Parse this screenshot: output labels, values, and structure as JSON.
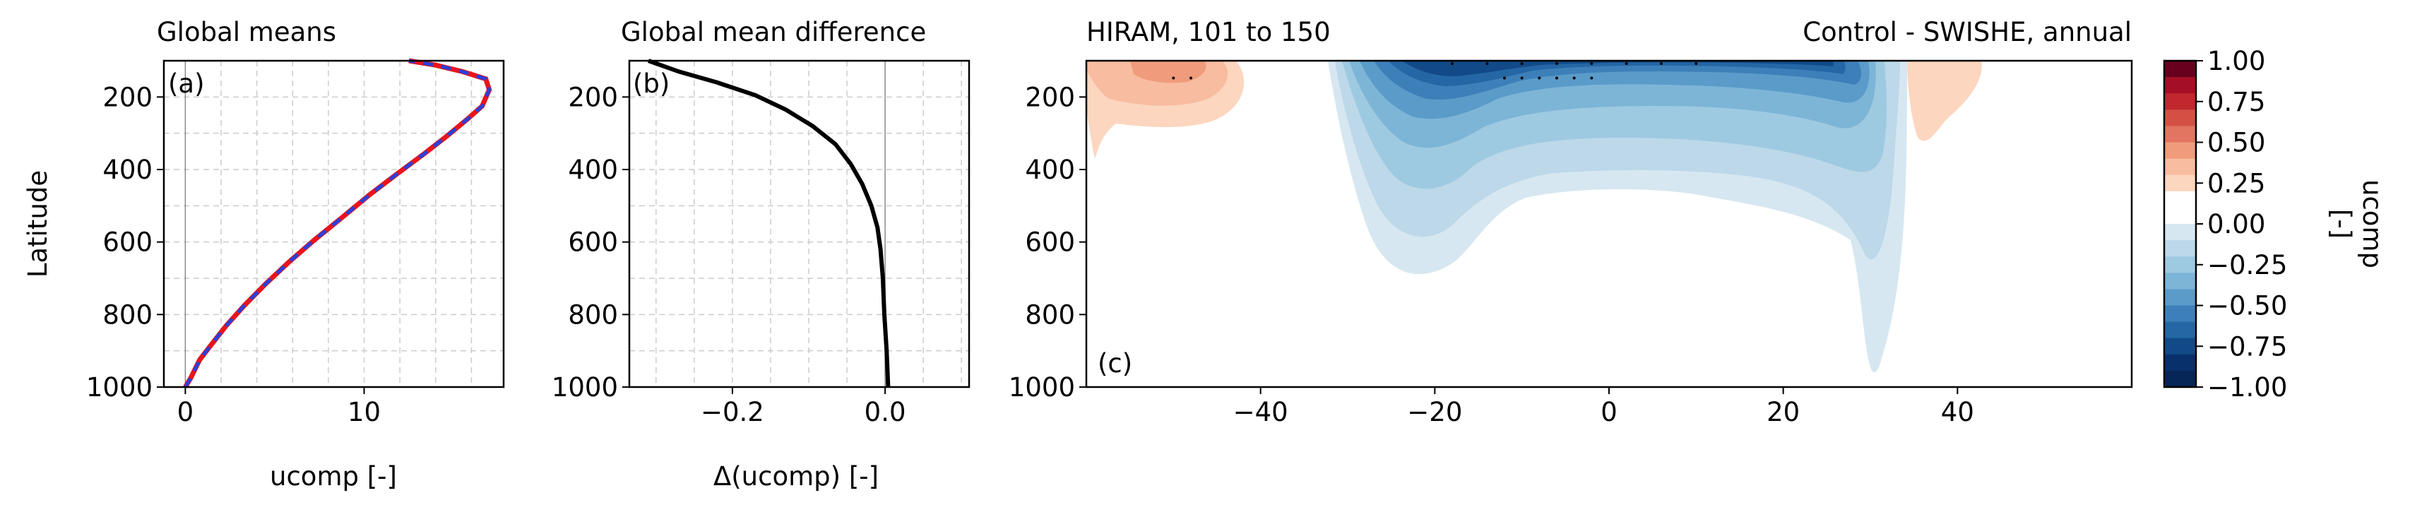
{
  "panel_a": {
    "title": "Global means",
    "label": "(a)",
    "ylabel": "Latitude",
    "xlabel": "ucomp [-]"
  },
  "panel_b": {
    "title": "Global mean difference",
    "label": "(b)",
    "xlabel": "Δ(ucomp) [-]"
  },
  "panel_c": {
    "title_left": "HIRAM, 101 to 150",
    "title_right": "Control - SWISHE, annual",
    "label": "(c)"
  },
  "colorbar": {
    "label": "ucomp\n[-]"
  },
  "colors": {
    "control_line": "#e8141c",
    "experiment_line": "#2c3fd6",
    "difference_line": "#000000"
  },
  "chart_data": [
    {
      "id": "a",
      "type": "line",
      "title": "Global means",
      "xlabel": "ucomp [-]",
      "ylabel": "Latitude",
      "xlim": [
        -1.2,
        17.8
      ],
      "ylim": [
        1000,
        100
      ],
      "xticks": [
        0,
        10
      ],
      "xtick_labels": [
        "0",
        "10"
      ],
      "yticks": [
        200,
        400,
        600,
        800,
        1000
      ],
      "ytick_labels": [
        "200",
        "400",
        "600",
        "800",
        "1000"
      ],
      "grid": true,
      "series": [
        {
          "style": "solid red",
          "color": "#e8141c",
          "x": [
            0.0,
            0.3,
            0.8,
            1.5,
            2.3,
            3.3,
            4.5,
            5.8,
            7.2,
            8.7,
            10.3,
            11.9,
            13.4,
            14.7,
            15.8,
            16.6,
            17.0,
            16.8,
            15.5,
            14.0,
            12.5
          ],
          "y": [
            1000,
            975,
            925,
            880,
            830,
            775,
            715,
            655,
            595,
            535,
            470,
            410,
            355,
            305,
            260,
            225,
            180,
            150,
            130,
            112,
            100
          ]
        },
        {
          "style": "dashed blue",
          "color": "#2c3fd6",
          "x": [
            0.0,
            0.3,
            0.8,
            1.5,
            2.3,
            3.3,
            4.5,
            5.8,
            7.2,
            8.7,
            10.3,
            11.9,
            13.4,
            14.7,
            15.8,
            16.6,
            17.0,
            16.8,
            15.5,
            14.0,
            12.5
          ],
          "y": [
            1000,
            975,
            925,
            880,
            830,
            775,
            715,
            655,
            595,
            535,
            470,
            410,
            355,
            305,
            260,
            225,
            180,
            150,
            130,
            112,
            100
          ]
        }
      ]
    },
    {
      "id": "b",
      "type": "line",
      "title": "Global mean difference",
      "xlabel": "Δ(ucomp) [-]",
      "xlim": [
        -0.335,
        0.11
      ],
      "ylim": [
        1000,
        100
      ],
      "xticks": [
        -0.2,
        0.0
      ],
      "xtick_labels": [
        "−0.2",
        "0.0"
      ],
      "yticks": [
        200,
        400,
        600,
        800,
        1000
      ],
      "ytick_labels": [
        "200",
        "400",
        "600",
        "800",
        "1000"
      ],
      "grid": true,
      "series": [
        {
          "color": "#000000",
          "x": [
            -0.31,
            -0.27,
            -0.22,
            -0.17,
            -0.13,
            -0.095,
            -0.065,
            -0.045,
            -0.03,
            -0.018,
            -0.01,
            -0.006,
            -0.003,
            -0.001,
            0.002,
            0.004
          ],
          "y": [
            100,
            130,
            160,
            195,
            235,
            280,
            330,
            385,
            440,
            500,
            560,
            620,
            700,
            800,
            900,
            1000
          ]
        }
      ]
    },
    {
      "id": "c",
      "type": "contour",
      "title_left": "HIRAM, 101 to 150",
      "title_right": "Control - SWISHE, annual",
      "xlim": [
        -60,
        60
      ],
      "ylim": [
        1000,
        100
      ],
      "xticks": [
        -40,
        -20,
        0,
        20,
        40
      ],
      "xtick_labels": [
        "−40",
        "−20",
        "0",
        "20",
        "40"
      ],
      "yticks": [
        200,
        400,
        600,
        800,
        1000
      ],
      "ytick_labels": [
        "200",
        "400",
        "600",
        "800",
        "1000"
      ],
      "features": [
        {
          "sign": "negative",
          "lat_range": [
            -30,
            32
          ],
          "p_range": [
            100,
            690
          ],
          "min": -1.0,
          "note": "strong negative band near top between -25 and 25"
        },
        {
          "sign": "positive",
          "lat_range": [
            -60,
            -37
          ],
          "p_range": [
            100,
            230
          ],
          "max": 0.4
        },
        {
          "sign": "positive",
          "lat_range": [
            32,
            42
          ],
          "p_range": [
            100,
            220
          ],
          "max": 0.3
        },
        {
          "sign": "positive",
          "lat_range": [
            40,
            45
          ],
          "p_range": [
            100,
            130
          ],
          "max": 0.3
        }
      ]
    },
    {
      "id": "colorbar",
      "type": "colorbar",
      "label": "ucomp\n[-]",
      "ticks": [
        1.0,
        0.75,
        0.5,
        0.25,
        0.0,
        -0.25,
        -0.5,
        -0.75,
        -1.0
      ],
      "tick_labels": [
        "1.00",
        "0.75",
        "0.50",
        "0.25",
        "0.00",
        "−0.25",
        "−0.50",
        "−0.75",
        "−1.00"
      ],
      "levels": [
        1.0,
        0.9,
        0.8,
        0.7,
        0.6,
        0.5,
        0.4,
        0.3,
        0.2,
        0.1,
        0.0,
        -0.1,
        -0.2,
        -0.3,
        -0.4,
        -0.5,
        -0.6,
        -0.7,
        -0.8,
        -0.9,
        -1.0
      ],
      "colors": [
        "#67001f",
        "#a50f26",
        "#c0282e",
        "#d45044",
        "#e27562",
        "#f09c7c",
        "#f8bca1",
        "#fcd6bf",
        "#ffffff",
        "#ffffff",
        "#d6e7f1",
        "#bcd8e9",
        "#9ecae1",
        "#7db5d7",
        "#5a9bc9",
        "#3d80b9",
        "#2566a5",
        "#124a87",
        "#08306b",
        "#052657"
      ]
    }
  ]
}
